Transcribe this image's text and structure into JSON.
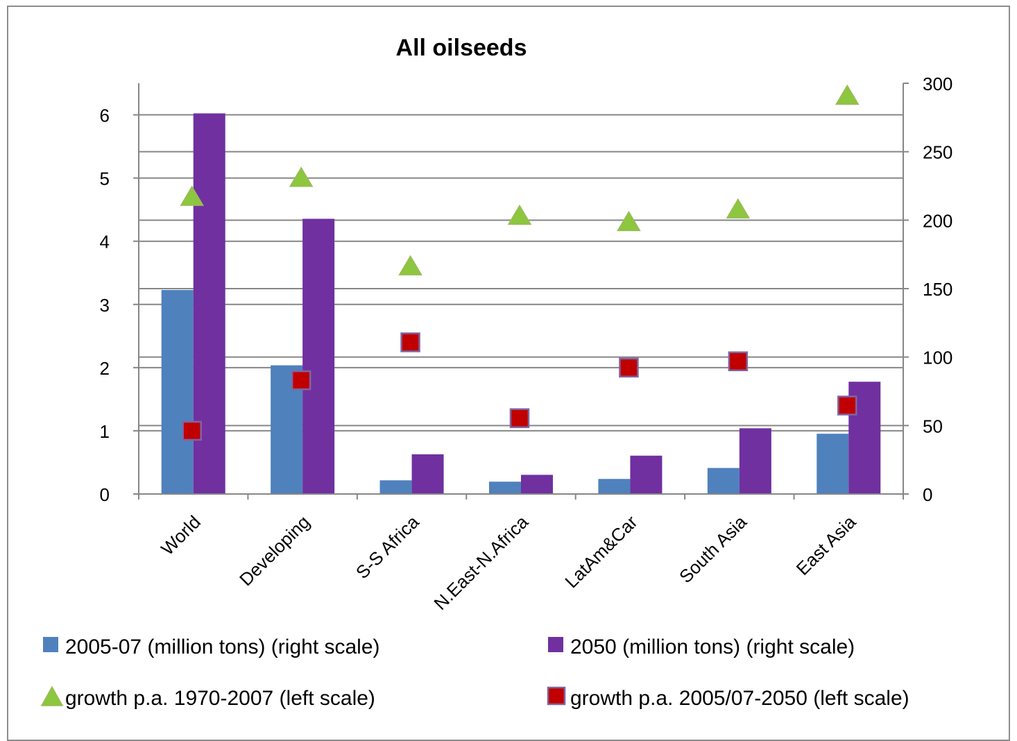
{
  "chart_data": {
    "type": "bar",
    "title": "All oilseeds",
    "categories": [
      "World",
      "Developing",
      "S-S Africa",
      "N.East-N.Africa",
      "LatAm&Car",
      "South Asia",
      "East Asia"
    ],
    "series": [
      {
        "name": "2005-07 (million tons) (right scale)",
        "kind": "bar",
        "axis": "right",
        "color": "#4f81bd",
        "values": [
          149,
          94,
          10,
          9,
          11,
          19,
          44
        ]
      },
      {
        "name": "2050 (million tons) (right scale)",
        "kind": "bar",
        "axis": "right",
        "color": "#7030a0",
        "values": [
          278,
          201,
          29,
          14,
          28,
          48,
          82
        ]
      },
      {
        "name": "growth p.a. 1970-2007 (left scale)",
        "kind": "triangle",
        "axis": "left",
        "color": "#8dc63f",
        "values": [
          4.7,
          5.0,
          3.6,
          4.4,
          4.3,
          4.5,
          6.3
        ]
      },
      {
        "name": "growth p.a. 2005/07-2050 (left scale)",
        "kind": "square",
        "axis": "left",
        "color": "#c00000",
        "values": [
          1.0,
          1.8,
          2.4,
          1.2,
          2.0,
          2.1,
          1.4
        ]
      }
    ],
    "left_axis": {
      "min": 0,
      "max": 6.5,
      "ticks": [
        "0",
        "1",
        "2",
        "3",
        "4",
        "5",
        "6"
      ],
      "tick_values": [
        0,
        1,
        2,
        3,
        4,
        5,
        6
      ]
    },
    "right_axis": {
      "min": 0,
      "max": 300,
      "ticks": [
        "0",
        "50",
        "100",
        "150",
        "200",
        "250",
        "300"
      ],
      "tick_values": [
        0,
        50,
        100,
        150,
        200,
        250,
        300
      ]
    },
    "grid": true,
    "legend_position": "bottom"
  }
}
